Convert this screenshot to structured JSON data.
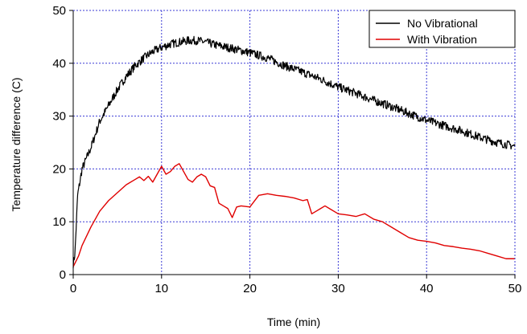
{
  "chart_data": {
    "type": "line",
    "title": "",
    "xlabel": "Time (min)",
    "ylabel": "Temperature difference (C)",
    "xlim": [
      0,
      50
    ],
    "ylim": [
      0,
      50
    ],
    "xticks": [
      "0",
      "10",
      "20",
      "30",
      "40",
      "50"
    ],
    "yticks": [
      "0",
      "10",
      "20",
      "30",
      "40",
      "50"
    ],
    "grid": true,
    "legend_position": "top-right",
    "colors": {
      "grid": "#3b3bd6",
      "axis": "#000000"
    },
    "series": [
      {
        "name": "No Vibrational",
        "color": "#000000",
        "noisy": true,
        "x": [
          0,
          0.2,
          0.5,
          0.8,
          1,
          1.5,
          2,
          3,
          4,
          5,
          6,
          7,
          8,
          9,
          10,
          11,
          12,
          13,
          14,
          15,
          16,
          18,
          20,
          22,
          24,
          26,
          28,
          30,
          32,
          34,
          36,
          38,
          40,
          42,
          44,
          46,
          48,
          50
        ],
        "y": [
          2,
          4,
          15,
          18,
          20,
          22,
          24,
          29,
          32,
          35,
          37.5,
          39.5,
          41,
          42.2,
          43,
          43.6,
          44,
          44.3,
          44.3,
          44,
          43.5,
          42.8,
          42,
          41,
          39.5,
          38.3,
          37,
          35.5,
          34.3,
          33,
          31.8,
          30.5,
          29.2,
          28.2,
          27.2,
          26,
          25,
          24.3
        ]
      },
      {
        "name": "With Vibration",
        "color": "#e00000",
        "noisy": false,
        "x": [
          0,
          0.3,
          0.6,
          1,
          2,
          3,
          4,
          5,
          6,
          7,
          7.5,
          8,
          8.5,
          9,
          9.5,
          10,
          10.5,
          11,
          11.5,
          12,
          12.5,
          13,
          13.5,
          14,
          14.5,
          15,
          15.5,
          16,
          16.5,
          17,
          17.5,
          18,
          18.5,
          19,
          20,
          21,
          22,
          23,
          24,
          25,
          26,
          26.5,
          27,
          27.5,
          28,
          28.5,
          29,
          30,
          31,
          32,
          33,
          34,
          35,
          36,
          37,
          38,
          39,
          40,
          41,
          42,
          43,
          44,
          45,
          46,
          47,
          48,
          49,
          50
        ],
        "y": [
          1.5,
          2.5,
          3.5,
          5.5,
          9,
          12,
          14,
          15.5,
          17,
          18,
          18.5,
          17.8,
          18.6,
          17.5,
          19,
          20.5,
          19,
          19.5,
          20.5,
          21,
          19.5,
          18,
          17.5,
          18.5,
          19,
          18.5,
          16.8,
          16.5,
          13.5,
          13,
          12.5,
          10.8,
          12.8,
          13,
          12.8,
          15,
          15.3,
          15,
          14.8,
          14.5,
          14,
          14.2,
          11.5,
          12,
          12.5,
          13,
          12.5,
          11.5,
          11.3,
          11,
          11.5,
          10.5,
          10,
          9,
          8,
          7,
          6.5,
          6.3,
          6,
          5.5,
          5.3,
          5,
          4.8,
          4.5,
          4,
          3.5,
          3,
          3
        ]
      }
    ]
  }
}
